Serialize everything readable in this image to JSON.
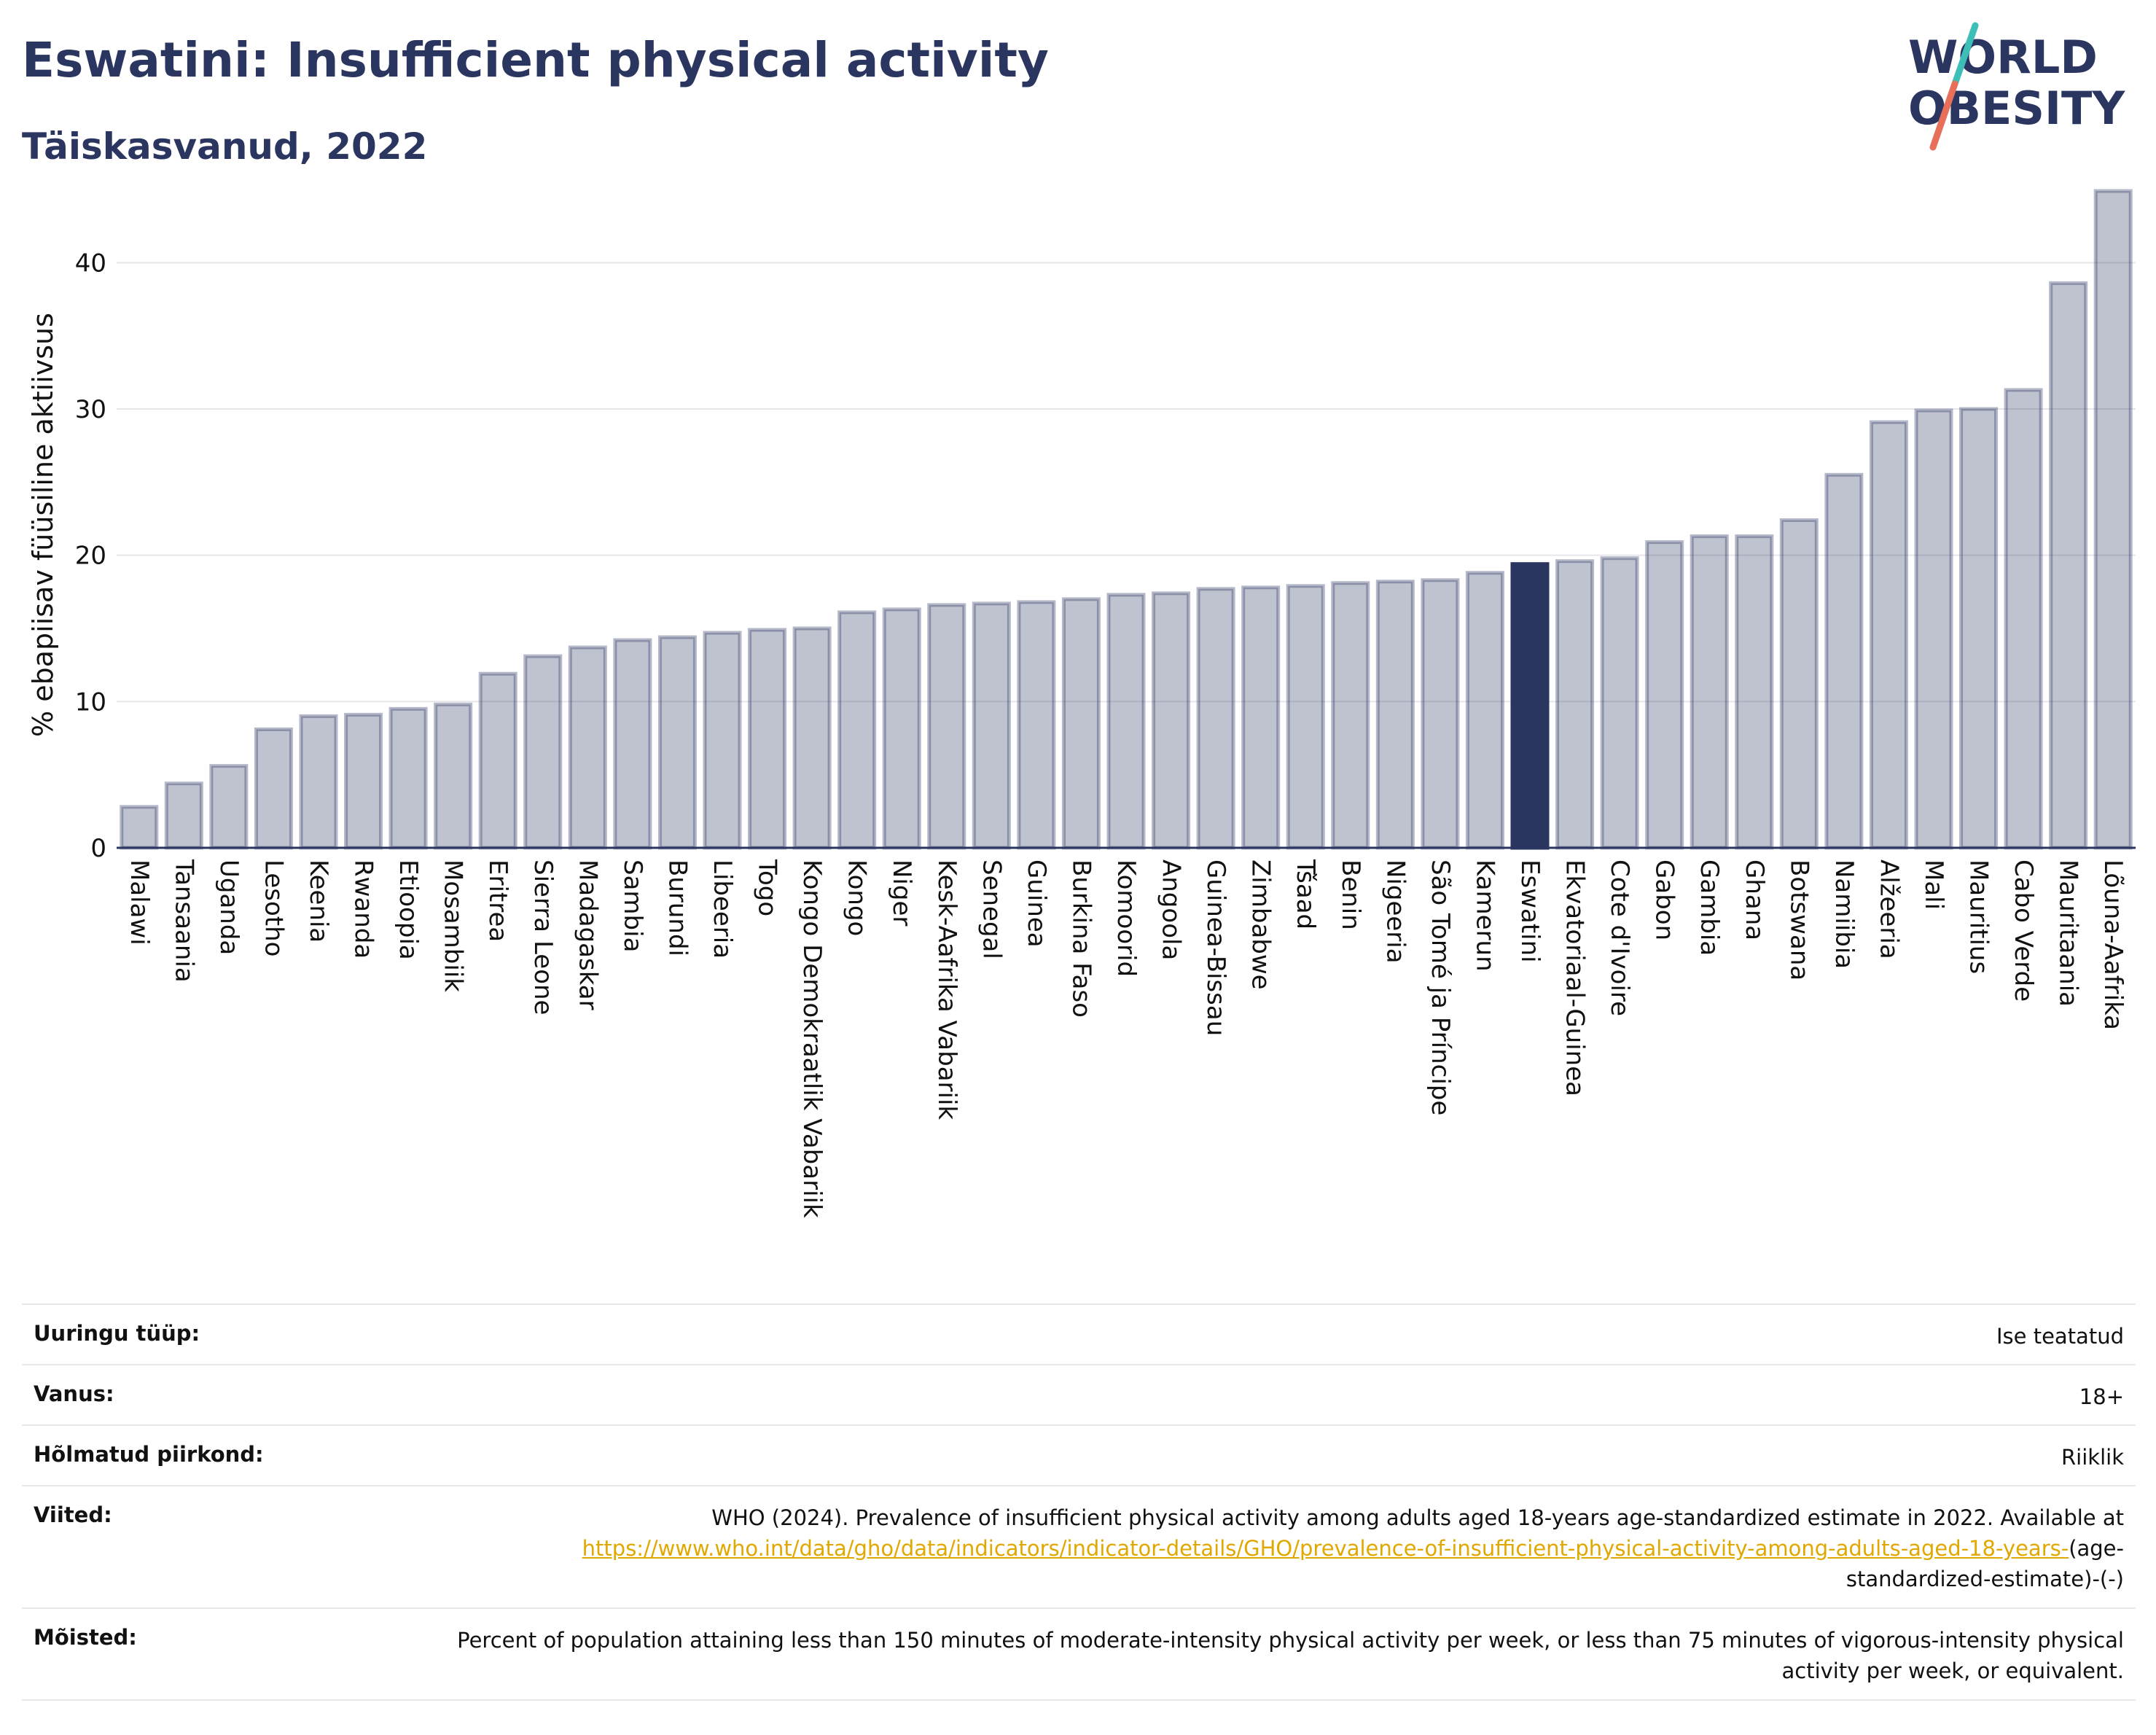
{
  "header": {
    "title": "Eswatini: Insufficient physical activity",
    "subtitle": "Täiskasvanud, 2022"
  },
  "logo": {
    "line1": "WORLD",
    "line2": "OBESITY",
    "colors": {
      "text": "#2a3560",
      "slash_teal": "#3dbfb8",
      "slash_coral": "#e8705a"
    }
  },
  "chart_data": {
    "type": "bar",
    "title": "Eswatini: Insufficient physical activity",
    "subtitle": "Täiskasvanud, 2022",
    "ylabel": "% ebapiisav füüsiline aktiivsus",
    "xlabel": "",
    "ylim": [
      0,
      45
    ],
    "yticks": [
      0,
      10,
      20,
      30,
      40
    ],
    "grid": true,
    "highlight": "Eswatini",
    "colors": {
      "bar": "#2a3560",
      "bar_fill_opacity": 0.3,
      "highlight": "#2a3560"
    },
    "categories": [
      "Malawi",
      "Tansaania",
      "Uganda",
      "Lesotho",
      "Keenia",
      "Rwanda",
      "Etioopia",
      "Mosambiik",
      "Eritrea",
      "Sierra Leone",
      "Madagaskar",
      "Sambia",
      "Burundi",
      "Libeeria",
      "Togo",
      "Kongo Demokraatlik Vabariik",
      "Kongo",
      "Niger",
      "Kesk-Aafrika Vabariik",
      "Senegal",
      "Guinea",
      "Burkina Faso",
      "Komoorid",
      "Angoola",
      "Guinea-Bissau",
      "Zimbabwe",
      "Tšaad",
      "Benin",
      "Nigeeria",
      "São Tomé ja Príncipe",
      "Kamerun",
      "Eswatini",
      "Ekvatoriaal-Guinea",
      "Cote d'Ivoire",
      "Gabon",
      "Gambia",
      "Ghana",
      "Botswana",
      "Namiibia",
      "Alžeeria",
      "Mali",
      "Mauritius",
      "Cabo Verde",
      "Mauritaania",
      "Lõuna-Aafrika"
    ],
    "values": [
      2.8,
      4.4,
      5.6,
      8.1,
      9.0,
      9.1,
      9.5,
      9.8,
      11.9,
      13.1,
      13.7,
      14.2,
      14.4,
      14.7,
      14.9,
      15.0,
      16.1,
      16.3,
      16.6,
      16.7,
      16.8,
      17.0,
      17.3,
      17.4,
      17.7,
      17.8,
      17.9,
      18.1,
      18.2,
      18.3,
      18.8,
      19.4,
      19.6,
      19.8,
      20.9,
      21.3,
      21.3,
      22.4,
      25.5,
      29.1,
      29.9,
      30.0,
      31.3,
      38.6,
      44.9
    ]
  },
  "meta": {
    "rows": [
      {
        "label": "Uuringu tüüp:",
        "value": "Ise teatatud"
      },
      {
        "label": "Vanus:",
        "value": "18+"
      },
      {
        "label": "Hõlmatud piirkond:",
        "value": "Riiklik"
      },
      {
        "label": "Viited:",
        "text": "WHO (2024). Prevalence of insufficient physical activity among adults aged 18-years age-standardized estimate in 2022. Available at ",
        "link": "https://www.who.int/data/gho/data/indicators/indicator-details/GHO/prevalence-of-insufficient-physical-activity-among-adults-aged-18-years-",
        "suffix": "(age-standardized-estimate)-(-)"
      },
      {
        "label": "Mõisted:",
        "value": "Percent of population attaining less than 150 minutes of moderate-intensity physical activity per week, or less than 75 minutes of vigorous-intensity physical activity per week, or equivalent."
      }
    ]
  }
}
